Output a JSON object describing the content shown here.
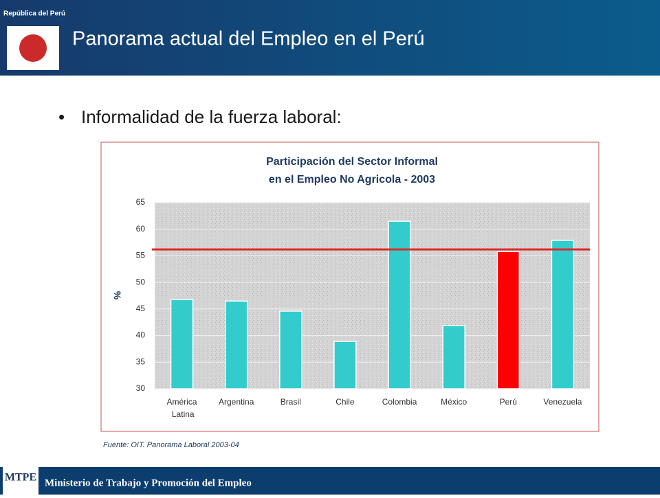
{
  "header": {
    "title": "Panorama actual del Empleo en el Perú",
    "emblem_text": "República del Perú"
  },
  "bullet": "Informalidad de la fuerza laboral:",
  "chart_data": {
    "type": "bar",
    "title": [
      "Participación del Sector Informal",
      "en el Empleo No Agricola - 2003"
    ],
    "ylabel": "%",
    "categories": [
      "América Latina",
      "Argentina",
      "Brasil",
      "Chile",
      "Colombia",
      "México",
      "Perú",
      "Venezuela"
    ],
    "values": [
      46.8,
      46.5,
      44.6,
      38.9,
      61.5,
      41.9,
      55.8,
      57.9
    ],
    "colors": [
      "#33cccc",
      "#33cccc",
      "#33cccc",
      "#33cccc",
      "#33cccc",
      "#33cccc",
      "#ff0000",
      "#33cccc"
    ],
    "reference_line": {
      "value": 56.2,
      "color": "#e02828"
    },
    "ylim": [
      30,
      65
    ],
    "yticks": [
      30,
      35,
      40,
      45,
      50,
      55,
      60,
      65
    ],
    "grid": true
  },
  "source": "Fuente: OIT. Panorama Laboral 2003-04",
  "footer": {
    "text": "Ministerio de Trabajo y Promoción del Empleo",
    "logo": "MTPE"
  }
}
